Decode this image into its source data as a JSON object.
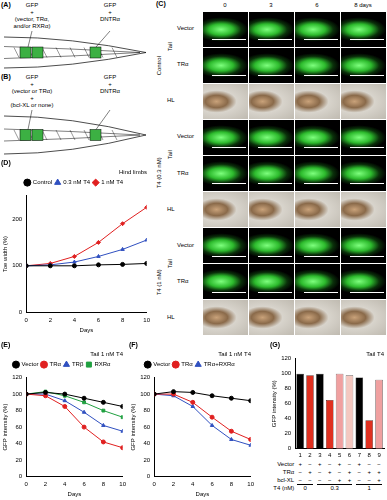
{
  "panels": {
    "A": {
      "label": "(A)",
      "left_text": [
        "GFP",
        "+",
        "(vector, TRα,",
        "and/or RXRα)"
      ],
      "right_text": [
        "GFP",
        "+",
        "DNTRα"
      ]
    },
    "B": {
      "label": "(B)",
      "left_text": [
        "GFP",
        "+",
        "(vector or TRα)",
        "+",
        "(bcl-XL or none)"
      ],
      "right_text": [
        "GFP",
        "+",
        "DNTRα"
      ]
    },
    "C": {
      "label": "(C)",
      "columns": [
        "0",
        "3",
        "6",
        "8 days"
      ],
      "groups": [
        {
          "name": "Control",
          "tail": "Tail",
          "rows": [
            "Vector",
            "TRα"
          ],
          "hl": "HL"
        },
        {
          "name": "T4 (0.3 nM)",
          "tail": "Tail",
          "rows": [
            "Vector",
            "TRα"
          ],
          "hl": "HL"
        },
        {
          "name": "T4 (1 nM)",
          "tail": "Tail",
          "rows": [
            "Vector",
            "TRα"
          ],
          "hl": "HL"
        }
      ]
    }
  },
  "chart_data": [
    {
      "panel": "(D)",
      "type": "line",
      "annotation": "Hind limbs",
      "x_label": "Days",
      "y_label": "Toe width (%)",
      "x": [
        0,
        2,
        4,
        6,
        8,
        10
      ],
      "xlim": [
        0,
        10
      ],
      "xticks": [
        0,
        2,
        4,
        6,
        8,
        10
      ],
      "ylim": [
        0,
        250
      ],
      "yticks": [
        0,
        100,
        200
      ],
      "grid": false,
      "legend": "top",
      "series": [
        {
          "name": "Control",
          "color": "#000000",
          "marker": "circle",
          "values": [
            100,
            100,
            100,
            102,
            103,
            105
          ]
        },
        {
          "name": "0.3 nM T4",
          "color": "#3050c0",
          "marker": "triangle",
          "values": [
            100,
            102,
            108,
            120,
            135,
            155
          ]
        },
        {
          "name": "1 nM T4",
          "color": "#e02020",
          "marker": "diamond",
          "values": [
            100,
            105,
            120,
            150,
            190,
            225
          ]
        }
      ]
    },
    {
      "panel": "(E)",
      "type": "line",
      "annotation": "Tail 1 nM T4",
      "x_label": "Days",
      "y_label": "GFP intensity (%)",
      "x": [
        0,
        2,
        4,
        6,
        8,
        10
      ],
      "xlim": [
        0,
        10
      ],
      "xticks": [
        0,
        2,
        4,
        6,
        8,
        10
      ],
      "ylim": [
        0,
        120
      ],
      "yticks": [
        0,
        20,
        40,
        60,
        80,
        100,
        120
      ],
      "grid": false,
      "legend": "top",
      "series": [
        {
          "name": "Vector",
          "color": "#000000",
          "marker": "circle",
          "values": [
            100,
            102,
            100,
            95,
            90,
            85
          ]
        },
        {
          "name": "TRα",
          "color": "#e02020",
          "marker": "circle",
          "values": [
            100,
            98,
            85,
            60,
            42,
            35
          ]
        },
        {
          "name": "TRβ",
          "color": "#3050c0",
          "marker": "triangle",
          "values": [
            100,
            100,
            92,
            78,
            62,
            55
          ]
        },
        {
          "name": "RXRα",
          "color": "#20a040",
          "marker": "square",
          "values": [
            100,
            103,
            98,
            90,
            80,
            72
          ]
        }
      ]
    },
    {
      "panel": "(F)",
      "type": "line",
      "annotation": "Tail 1 nM T4",
      "x_label": "Days",
      "y_label": "GFP intensity (%)",
      "x": [
        0,
        2,
        4,
        6,
        8,
        10
      ],
      "xlim": [
        0,
        10
      ],
      "xticks": [
        0,
        2,
        4,
        6,
        8,
        10
      ],
      "ylim": [
        0,
        120
      ],
      "yticks": [
        0,
        20,
        40,
        60,
        80,
        100,
        120
      ],
      "grid": false,
      "legend": "top",
      "series": [
        {
          "name": "Vector",
          "color": "#000000",
          "marker": "circle",
          "values": [
            100,
            103,
            102,
            98,
            95,
            92
          ]
        },
        {
          "name": "TRα",
          "color": "#e02020",
          "marker": "circle",
          "values": [
            100,
            100,
            90,
            72,
            55,
            45
          ]
        },
        {
          "name": "TRα+RXRα",
          "color": "#3050c0",
          "marker": "triangle",
          "values": [
            100,
            98,
            85,
            62,
            45,
            38
          ]
        }
      ]
    },
    {
      "panel": "(G)",
      "type": "bar",
      "annotation": "Tail T4",
      "y_label": "GFP intensity (%)",
      "categories": [
        "1",
        "2",
        "3",
        "4",
        "5",
        "6",
        "7",
        "8",
        "9"
      ],
      "values": [
        100,
        98,
        100,
        65,
        100,
        98,
        95,
        38,
        92
      ],
      "colors": [
        "#000000",
        "#e03020",
        "#000000",
        "#e03020",
        "#f0a0a0",
        "#f4c8c0",
        "#000000",
        "#e03020",
        "#f0a0a0"
      ],
      "ylim": [
        0,
        120
      ],
      "yticks": [
        0,
        20,
        40,
        60,
        80,
        100,
        120
      ],
      "grid": false,
      "table": {
        "rows": [
          {
            "name": "Vector",
            "cells": [
              "+",
              "−",
              "+",
              "−",
              "+",
              "−",
              "+",
              "−",
              "−"
            ]
          },
          {
            "name": "TRα",
            "cells": [
              "−",
              "+",
              "−",
              "+",
              "−",
              "+",
              "−",
              "+",
              "+"
            ]
          },
          {
            "name": "bcl-XL",
            "cells": [
              "−",
              "−",
              "−",
              "−",
              "+",
              "+",
              "−",
              "−",
              "+"
            ]
          }
        ],
        "t4_name": "T4 (nM)",
        "t4": [
          0,
          0,
          0.3,
          0.3,
          0.3,
          0.3,
          1,
          1,
          1
        ]
      }
    }
  ]
}
